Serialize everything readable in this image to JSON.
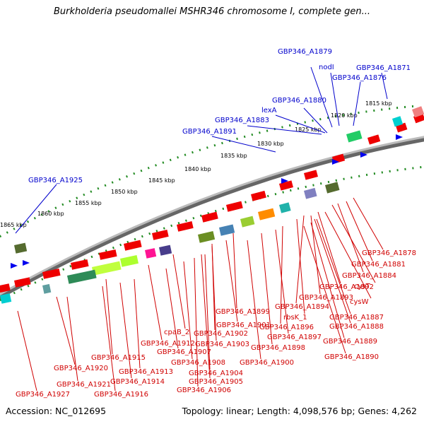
{
  "title": "Burkholderia pseudomallei MSHR346 chromosome I, complete gen...",
  "footer": {
    "accession": "Accession: NC_012695",
    "summary": "Topology: linear; Length: 4,098,576 bp; Genes: 4,262"
  },
  "scale_labels": [
    "1815 kbp",
    "1820 kbp",
    "1825 kbp",
    "1830 kbp",
    "1835 kbp",
    "1840 kbp",
    "1845 kbp",
    "1850 kbp",
    "1855 kbp",
    "1860 kbp",
    "1865 kbp"
  ],
  "top_labels": [
    "GBP346_A1879",
    "nodI",
    "GBP346_A1871",
    "GBP346_A1876",
    "GBP346_A1880",
    "lexA",
    "GBP346_A1883",
    "GBP346_A1891",
    "GBP346_A1925"
  ],
  "bottom_labels": [
    "GBP346_A1878",
    "GBP346_A1881",
    "GBP346_A1884",
    "cysT",
    "GBP346_A1892",
    "GBP346_A1893",
    "cysW",
    "GBP346_A1894",
    "GBP346_A1899",
    "rbsK_1",
    "GBP346_A1887",
    "GBP346_A1888",
    "GBP346_A1901",
    "GBP346_A1896",
    "cpaB_2",
    "GBP346_A1902",
    "GBP346_A1897",
    "GBP346_A1889",
    "GBP346_A1912",
    "GBP346_A1903",
    "GBP346_A1898",
    "GBP346_A1890",
    "GBP346_A1907",
    "GBP346_A1915",
    "GBP346_A1908",
    "GBP346_A1900",
    "GBP346_A1920",
    "GBP346_A1913",
    "GBP346_A1904",
    "GBP346_A1914",
    "GBP346_A1905",
    "GBP346_A1921",
    "GBP346_A1916",
    "GBP346_A1906",
    "GBP346_A1927"
  ],
  "colors": {
    "forward_red": "#ee0000",
    "backbone": "#888888",
    "scale_dots": "#228b22",
    "label_blue": "#0000cc",
    "label_red": "#d00000"
  }
}
